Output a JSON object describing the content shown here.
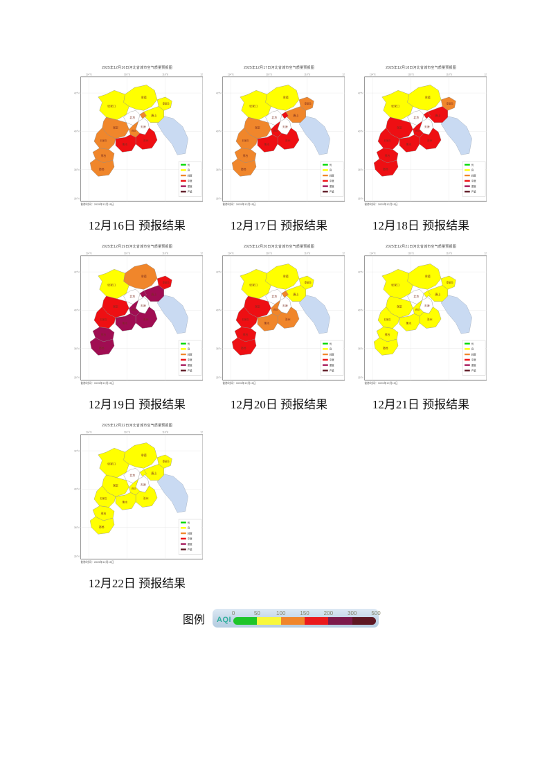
{
  "cities": {
    "zhangjiakou": "张家口",
    "chengde": "承德",
    "beijing": "北京",
    "tianjin": "天津",
    "tangshan": "唐山",
    "qinhuangdao": "秦皇岛",
    "langfang": "廊坊",
    "baoding": "保定",
    "cangzhou": "沧州",
    "shijiazhuang": "石家庄",
    "hengshui": "衡水",
    "xingtai": "邢台",
    "handan": "邯郸"
  },
  "axis": {
    "top": [
      "114°E",
      "116°E",
      "118°E",
      "120°E"
    ],
    "left": [
      "42°N",
      "40°N",
      "38°N",
      "36°N"
    ]
  },
  "aqi_colors": {
    "none": "#ffffff",
    "excellent": "#00d800",
    "good": "#ffff00",
    "light": "#f0862b",
    "moderate": "#ee0f13",
    "heavy": "#a00d52",
    "severe": "#5e1823"
  },
  "sea_color": "#c9daf2",
  "map_legend": [
    {
      "label": "优",
      "level": "excellent"
    },
    {
      "label": "良",
      "level": "good"
    },
    {
      "label": "轻度",
      "level": "light"
    },
    {
      "label": "中度",
      "level": "moderate"
    },
    {
      "label": "重度",
      "level": "heavy"
    },
    {
      "label": "严重",
      "level": "severe"
    }
  ],
  "maps": [
    {
      "title": "2025年12月16日河北省城市空气质量预报图",
      "caption": "12月16日 预报结果",
      "note": "制作时间：2025年12月15日",
      "levels": {
        "zhangjiakou": "good",
        "chengde": "good",
        "tangshan": "good",
        "qinhuangdao": "good",
        "beijing": "none",
        "tianjin": "none",
        "langfang": "light",
        "baoding": "light",
        "shijiazhuang": "light",
        "xingtai": "light",
        "handan": "light",
        "cangzhou": "moderate",
        "hengshui": "moderate"
      }
    },
    {
      "title": "2025年12月17日河北省城市空气质量预报图",
      "caption": "12月17日 预报结果",
      "note": "制作时间：2025年12月15日",
      "levels": {
        "zhangjiakou": "good",
        "chengde": "good",
        "tangshan": "light",
        "qinhuangdao": "light",
        "beijing": "none",
        "tianjin": "none",
        "langfang": "moderate",
        "baoding": "light",
        "shijiazhuang": "light",
        "xingtai": "light",
        "handan": "light",
        "cangzhou": "moderate",
        "hengshui": "moderate"
      }
    },
    {
      "title": "2025年12月18日河北省城市空气质量预报图",
      "caption": "12月18日 预报结果",
      "note": "制作时间：2025年12月15日",
      "levels": {
        "zhangjiakou": "good",
        "chengde": "good",
        "tangshan": "moderate",
        "qinhuangdao": "light",
        "beijing": "none",
        "tianjin": "none",
        "langfang": "moderate",
        "baoding": "moderate",
        "shijiazhuang": "moderate",
        "xingtai": "moderate",
        "handan": "moderate",
        "cangzhou": "moderate",
        "hengshui": "moderate"
      }
    },
    {
      "title": "2025年12月19日河北省城市空气质量预报图",
      "caption": "12月19日 预报结果",
      "note": "制作时间：2025年12月15日",
      "levels": {
        "zhangjiakou": "good",
        "chengde": "light",
        "tangshan": "heavy",
        "qinhuangdao": "moderate",
        "beijing": "none",
        "tianjin": "none",
        "langfang": "heavy",
        "baoding": "moderate",
        "shijiazhuang": "moderate",
        "xingtai": "heavy",
        "handan": "heavy",
        "cangzhou": "heavy",
        "hengshui": "heavy"
      }
    },
    {
      "title": "2025年12月20日河北省城市空气质量预报图",
      "caption": "12月20日 预报结果",
      "note": "制作时间：2025年12月15日",
      "levels": {
        "zhangjiakou": "good",
        "chengde": "good",
        "tangshan": "good",
        "qinhuangdao": "good",
        "beijing": "none",
        "tianjin": "none",
        "langfang": "light",
        "baoding": "moderate",
        "shijiazhuang": "moderate",
        "xingtai": "moderate",
        "handan": "moderate",
        "cangzhou": "light",
        "hengshui": "light"
      }
    },
    {
      "title": "2025年12月21日河北省城市空气质量预报图",
      "caption": "12月21日 预报结果",
      "note": "制作时间：2025年12月15日",
      "levels": {
        "zhangjiakou": "good",
        "chengde": "good",
        "tangshan": "good",
        "qinhuangdao": "good",
        "beijing": "none",
        "tianjin": "none",
        "langfang": "good",
        "baoding": "good",
        "shijiazhuang": "good",
        "xingtai": "good",
        "handan": "good",
        "cangzhou": "good",
        "hengshui": "good"
      }
    },
    {
      "title": "2025年12月22日河北省城市空气质量预报图",
      "caption": "12月22日 预报结果",
      "note": "制作时间：2025年12月15日",
      "levels": {
        "zhangjiakou": "good",
        "chengde": "good",
        "tangshan": "good",
        "qinhuangdao": "good",
        "beijing": "none",
        "tianjin": "none",
        "langfang": "good",
        "baoding": "good",
        "shijiazhuang": "good",
        "xingtai": "good",
        "handan": "good",
        "cangzhou": "good",
        "hengshui": "good"
      }
    }
  ],
  "legend": {
    "label": "图例",
    "aqi_label": "AQI",
    "ticks": [
      "0",
      "50",
      "100",
      "150",
      "200",
      "300",
      "500"
    ],
    "segment_colors": [
      "#1ec52a",
      "#f8f83c",
      "#f0862b",
      "#ea191c",
      "#7d1a4b",
      "#5e1823"
    ]
  }
}
